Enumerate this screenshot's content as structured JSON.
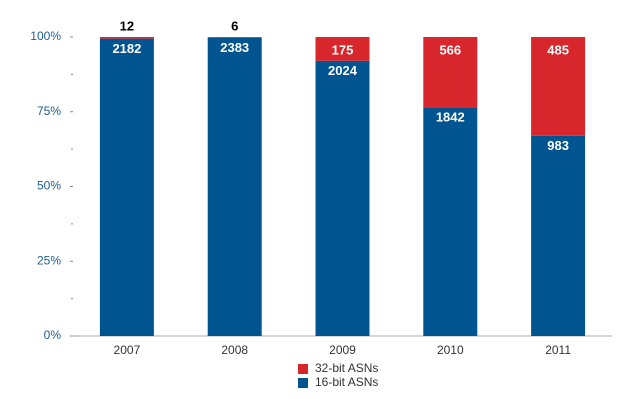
{
  "chart_data": {
    "type": "bar",
    "stacked": "percent",
    "categories": [
      "2007",
      "2008",
      "2009",
      "2010",
      "2011"
    ],
    "series": [
      {
        "name": "16-bit ASNs",
        "color": "#00548f",
        "values": [
          2182,
          2383,
          2024,
          1842,
          983
        ]
      },
      {
        "name": "32-bit ASNs",
        "color": "#d7262c",
        "values": [
          12,
          6,
          175,
          566,
          485
        ]
      }
    ],
    "ylim": [
      0,
      100
    ],
    "yticks": [
      {
        "value": 0,
        "label": "0%"
      },
      {
        "value": 25,
        "label": "25%"
      },
      {
        "value": 50,
        "label": "50%"
      },
      {
        "value": 75,
        "label": "75%"
      },
      {
        "value": 100,
        "label": "100%"
      }
    ],
    "minor_yticks": [
      12.5,
      37.5,
      62.5,
      87.5
    ],
    "grid": false
  }
}
